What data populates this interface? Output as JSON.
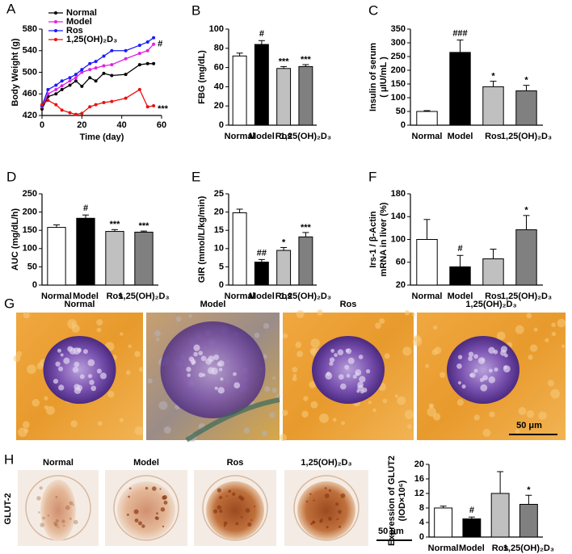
{
  "chart_data": [
    {
      "type": "line",
      "panel": "A",
      "ylabel": [
        "Body Weight (g)"
      ],
      "xlabel": "Time (day)",
      "x": [
        0,
        3,
        7,
        10,
        14,
        17,
        20,
        24,
        27,
        31,
        35,
        42,
        49,
        53,
        56
      ],
      "series": [
        {
          "name": "Normal",
          "color": "#000000",
          "values": [
            432,
            455,
            460,
            468,
            476,
            484,
            474,
            490,
            484,
            498,
            494,
            496,
            514,
            516,
            516
          ]
        },
        {
          "name": "Model",
          "color": "#e020e0",
          "values": [
            436,
            460,
            468,
            475,
            484,
            490,
            500,
            505,
            508,
            512,
            514,
            525,
            535,
            540,
            552
          ],
          "end_label": "#"
        },
        {
          "name": "Ros",
          "color": "#1a1aff",
          "values": [
            438,
            468,
            476,
            484,
            490,
            496,
            505,
            516,
            520,
            530,
            540,
            540,
            550,
            556,
            564
          ]
        },
        {
          "name": "1,25(OH)₂D₃",
          "color": "#e81010",
          "values": [
            440,
            448,
            440,
            430,
            425,
            422,
            424,
            436,
            440,
            444,
            446,
            452,
            468,
            436,
            438
          ],
          "end_label": "***"
        }
      ],
      "xlim": [
        0,
        60
      ],
      "xticks": [
        0,
        20,
        40,
        60
      ],
      "ylim": [
        420,
        580
      ],
      "yticks": [
        420,
        460,
        500,
        540,
        580
      ]
    },
    {
      "type": "bar",
      "panel": "B",
      "ylabel": [
        "FBG (mg/dL)"
      ],
      "categories": [
        "Normal",
        "Model",
        "Ros",
        "1,25(OH)₂D₃"
      ],
      "values": [
        72,
        84,
        59,
        61
      ],
      "errors": [
        3,
        4,
        2,
        2
      ],
      "annotations": [
        null,
        "#",
        "***",
        "***"
      ],
      "colors": [
        "#ffffff",
        "#000000",
        "#c0c0c0",
        "#808080"
      ],
      "ylim": [
        0,
        100
      ],
      "yticks": [
        0,
        20,
        40,
        60,
        80,
        100
      ]
    },
    {
      "type": "bar",
      "panel": "C",
      "ylabel": [
        "Insulin of serum",
        "( μIU/mL )"
      ],
      "categories": [
        "Normal",
        "Model",
        "Ros",
        "1,25(OH)₂D₃"
      ],
      "values": [
        50,
        265,
        140,
        125
      ],
      "errors": [
        3,
        45,
        20,
        20
      ],
      "annotations": [
        null,
        "###",
        "*",
        "*"
      ],
      "colors": [
        "#ffffff",
        "#000000",
        "#c0c0c0",
        "#808080"
      ],
      "ylim": [
        0,
        350
      ],
      "yticks": [
        0,
        50,
        100,
        150,
        200,
        250,
        300,
        350
      ]
    },
    {
      "type": "bar",
      "panel": "D",
      "ylabel": [
        "AUC (mg/dL/h)"
      ],
      "categories": [
        "Normal",
        "Model",
        "Ros",
        "1,25(OH)₂D₃"
      ],
      "values": [
        158,
        183,
        147,
        145
      ],
      "errors": [
        7,
        9,
        5,
        3
      ],
      "annotations": [
        null,
        "#",
        "***",
        "***"
      ],
      "colors": [
        "#ffffff",
        "#000000",
        "#c0c0c0",
        "#808080"
      ],
      "ylim": [
        0,
        250
      ],
      "yticks": [
        0,
        50,
        100,
        150,
        200,
        250
      ]
    },
    {
      "type": "bar",
      "panel": "E",
      "ylabel": [
        "GIR (mmol/L/kg/min)"
      ],
      "categories": [
        "Normal",
        "Model",
        "Ros",
        "1,25(OH)₂D₃"
      ],
      "values": [
        19.8,
        6.3,
        9.5,
        13.2
      ],
      "errors": [
        1,
        0.7,
        0.8,
        1.2
      ],
      "annotations": [
        null,
        "##",
        "*",
        "***"
      ],
      "colors": [
        "#ffffff",
        "#000000",
        "#c0c0c0",
        "#808080"
      ],
      "ylim": [
        0,
        25
      ],
      "yticks": [
        0,
        5,
        10,
        15,
        20,
        25
      ]
    },
    {
      "type": "bar",
      "panel": "F",
      "ylabel": [
        "Irs-1 / β-Actin",
        "mRNA in liver (%)"
      ],
      "categories": [
        "Normal",
        "Model",
        "Ros",
        "1,25(OH)₂D₃"
      ],
      "values": [
        100,
        52,
        66,
        117
      ],
      "errors": [
        35,
        20,
        17,
        25
      ],
      "annotations": [
        null,
        "#",
        null,
        "*"
      ],
      "colors": [
        "#ffffff",
        "#000000",
        "#c0c0c0",
        "#808080"
      ],
      "ylim": [
        20,
        180
      ],
      "yticks": [
        20,
        60,
        100,
        140,
        180
      ]
    },
    {
      "type": "bar",
      "ylabel": [
        "Expression of GLUT2",
        "(IOD×10⁶)"
      ],
      "categories": [
        "Normal",
        "Model",
        "Ros",
        "1,25(OH)₂D₃"
      ],
      "values": [
        8,
        5,
        12,
        9
      ],
      "errors": [
        0.5,
        0.5,
        6,
        2.5
      ],
      "annotations": [
        null,
        "#",
        null,
        "*"
      ],
      "colors": [
        "#ffffff",
        "#000000",
        "#c0c0c0",
        "#808080"
      ],
      "ylim": [
        0,
        20
      ],
      "yticks": [
        0,
        4,
        8,
        12,
        16,
        20
      ]
    }
  ],
  "figure": {
    "panel_g": {
      "letter": "G",
      "labels": [
        "Normal",
        "Model",
        "Ros",
        "1,25(OH)₂D₃"
      ],
      "scale_bar": "50 μm"
    },
    "panel_h": {
      "letter": "H",
      "labels": [
        "Normal",
        "Model",
        "Ros",
        "1,25(OH)₂D₃"
      ],
      "stain": "GLUT-2",
      "scale_bar": "50 μm"
    }
  }
}
